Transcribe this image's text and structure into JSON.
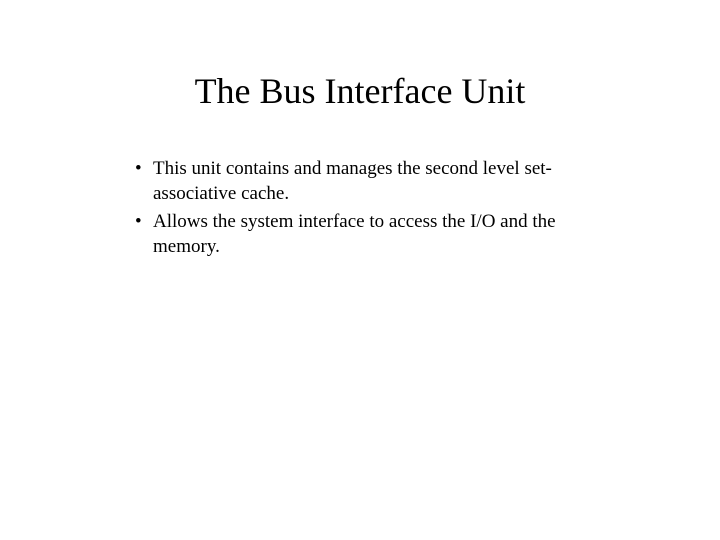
{
  "slide": {
    "title": "The Bus Interface Unit",
    "bullets": [
      "This unit contains and manages the second level set-associative cache.",
      "Allows the system interface to access the I/O and the memory."
    ]
  },
  "style": {
    "background_color": "#ffffff",
    "text_color": "#000000",
    "title_fontsize": 36,
    "body_fontsize": 19,
    "font_family": "Times New Roman"
  }
}
